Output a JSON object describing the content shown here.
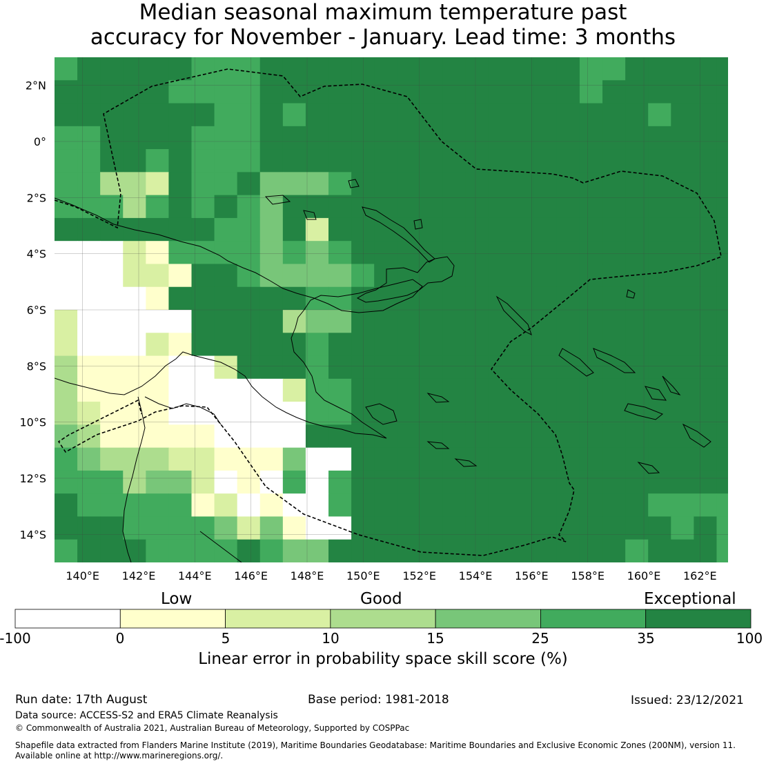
{
  "title": {
    "line1": "Median seasonal maximum temperature past",
    "line2": "accuracy for November - January. Lead time: 3 months"
  },
  "map": {
    "lat_labels": [
      "2°N",
      "0°",
      "2°S",
      "4°S",
      "6°S",
      "8°S",
      "10°S",
      "12°S",
      "14°S"
    ],
    "lon_labels": [
      "140°E",
      "142°E",
      "144°E",
      "146°E",
      "148°E",
      "150°E",
      "152°E",
      "154°E",
      "156°E",
      "158°E",
      "160°E",
      "162°E"
    ],
    "lat_range": [
      -15,
      3
    ],
    "lon_range": [
      139,
      163
    ]
  },
  "legend": {
    "category_low": "Low",
    "category_good": "Good",
    "category_exceptional": "Exceptional",
    "ticks": [
      "-100",
      "0",
      "5",
      "10",
      "15",
      "25",
      "35",
      "100"
    ],
    "colors": [
      "#ffffff",
      "#ffffcc",
      "#d9f0a3",
      "#addd8e",
      "#78c679",
      "#41ab5d",
      "#238443"
    ],
    "title": "Linear error in probability space skill score (%)"
  },
  "footer": {
    "run_date": "Run date: 17th August",
    "base_period": "Base period: 1981-2018",
    "issued": "Issued: 23/12/2021",
    "data_source": "Data source: ACCESS-S2 and ERA5 Climate Reanalysis",
    "copyright": "© Commonwealth of Australia 2021, Australian Bureau of Meteorology, Supported by COSPPac",
    "shapefile_line1": "Shapefile data extracted from Flanders Marine Institute (2019), Maritime Boundaries Geodatabase: Maritime Boundaries and Exclusive Economic Zones (200NM), version 11.",
    "shapefile_line2": "Available online at http://www.marineregions.org/."
  }
}
